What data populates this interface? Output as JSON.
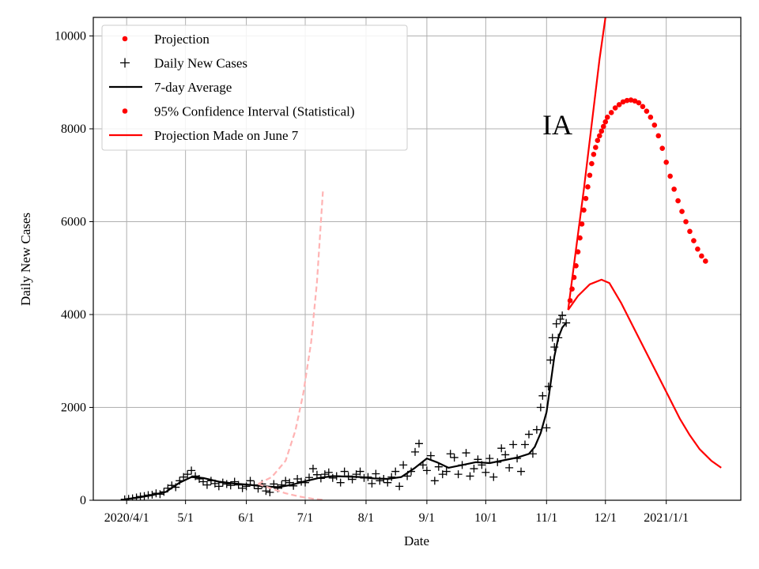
{
  "chart_data": {
    "type": "line",
    "title": "",
    "xlabel": "Date",
    "ylabel": "Daily New Cases",
    "annotation": "IA",
    "x_start": "2020-03-15",
    "x_end": "2021-02-08",
    "ylim": [
      0,
      10400
    ],
    "grid": true,
    "legend_position": "top-left",
    "x_ticks": [
      {
        "date": "2020-04-01",
        "label": "2020/4/1"
      },
      {
        "date": "2020-05-01",
        "label": "5/1"
      },
      {
        "date": "2020-06-01",
        "label": "6/1"
      },
      {
        "date": "2020-07-01",
        "label": "7/1"
      },
      {
        "date": "2020-08-01",
        "label": "8/1"
      },
      {
        "date": "2020-09-01",
        "label": "9/1"
      },
      {
        "date": "2020-10-01",
        "label": "10/1"
      },
      {
        "date": "2020-11-01",
        "label": "11/1"
      },
      {
        "date": "2020-12-01",
        "label": "12/1"
      },
      {
        "date": "2021-01-01",
        "label": "2021/1/1"
      }
    ],
    "y_ticks": [
      0,
      2000,
      4000,
      6000,
      8000,
      10000
    ],
    "legend": [
      {
        "label": "Projection",
        "marker": "dot",
        "color": "#ff0000"
      },
      {
        "label": "Daily New Cases",
        "marker": "plus",
        "color": "#000000"
      },
      {
        "label": "7-day Average",
        "marker": "line",
        "color": "#000000"
      },
      {
        "label": "95% Confidence Interval (Statistical)",
        "marker": "dot",
        "color": "#ff0000"
      },
      {
        "label": "Projection Made on June 7",
        "marker": "line",
        "color": "#ff0000"
      }
    ],
    "series": [
      {
        "name": "Daily New Cases",
        "style": "plus",
        "color": "#000000",
        "points": [
          [
            "2020-03-31",
            20
          ],
          [
            "2020-04-02",
            30
          ],
          [
            "2020-04-04",
            40
          ],
          [
            "2020-04-06",
            60
          ],
          [
            "2020-04-08",
            80
          ],
          [
            "2020-04-10",
            90
          ],
          [
            "2020-04-12",
            110
          ],
          [
            "2020-04-14",
            120
          ],
          [
            "2020-04-16",
            150
          ],
          [
            "2020-04-18",
            130
          ],
          [
            "2020-04-20",
            180
          ],
          [
            "2020-04-22",
            260
          ],
          [
            "2020-04-24",
            320
          ],
          [
            "2020-04-26",
            280
          ],
          [
            "2020-04-28",
            420
          ],
          [
            "2020-04-30",
            500
          ],
          [
            "2020-05-02",
            560
          ],
          [
            "2020-05-04",
            640
          ],
          [
            "2020-05-06",
            520
          ],
          [
            "2020-05-08",
            460
          ],
          [
            "2020-05-10",
            400
          ],
          [
            "2020-05-12",
            330
          ],
          [
            "2020-05-14",
            420
          ],
          [
            "2020-05-16",
            360
          ],
          [
            "2020-05-18",
            300
          ],
          [
            "2020-05-20",
            380
          ],
          [
            "2020-05-22",
            350
          ],
          [
            "2020-05-24",
            320
          ],
          [
            "2020-05-26",
            400
          ],
          [
            "2020-05-28",
            330
          ],
          [
            "2020-05-30",
            260
          ],
          [
            "2020-06-01",
            300
          ],
          [
            "2020-06-03",
            420
          ],
          [
            "2020-06-05",
            330
          ],
          [
            "2020-06-07",
            250
          ],
          [
            "2020-06-09",
            350
          ],
          [
            "2020-06-11",
            200
          ],
          [
            "2020-06-13",
            170
          ],
          [
            "2020-06-15",
            350
          ],
          [
            "2020-06-17",
            260
          ],
          [
            "2020-06-19",
            330
          ],
          [
            "2020-06-21",
            420
          ],
          [
            "2020-06-23",
            380
          ],
          [
            "2020-06-25",
            310
          ],
          [
            "2020-06-27",
            460
          ],
          [
            "2020-06-29",
            400
          ],
          [
            "2020-07-01",
            380
          ],
          [
            "2020-07-03",
            490
          ],
          [
            "2020-07-05",
            680
          ],
          [
            "2020-07-07",
            550
          ],
          [
            "2020-07-09",
            470
          ],
          [
            "2020-07-11",
            560
          ],
          [
            "2020-07-13",
            600
          ],
          [
            "2020-07-15",
            480
          ],
          [
            "2020-07-17",
            520
          ],
          [
            "2020-07-19",
            380
          ],
          [
            "2020-07-21",
            620
          ],
          [
            "2020-07-23",
            520
          ],
          [
            "2020-07-25",
            450
          ],
          [
            "2020-07-27",
            560
          ],
          [
            "2020-07-29",
            620
          ],
          [
            "2020-07-31",
            480
          ],
          [
            "2020-08-02",
            500
          ],
          [
            "2020-08-04",
            360
          ],
          [
            "2020-08-06",
            570
          ],
          [
            "2020-08-08",
            420
          ],
          [
            "2020-08-10",
            460
          ],
          [
            "2020-08-12",
            380
          ],
          [
            "2020-08-14",
            500
          ],
          [
            "2020-08-16",
            620
          ],
          [
            "2020-08-18",
            300
          ],
          [
            "2020-08-20",
            760
          ],
          [
            "2020-08-22",
            520
          ],
          [
            "2020-08-24",
            620
          ],
          [
            "2020-08-26",
            1040
          ],
          [
            "2020-08-28",
            1220
          ],
          [
            "2020-08-30",
            760
          ],
          [
            "2020-09-01",
            640
          ],
          [
            "2020-09-03",
            960
          ],
          [
            "2020-09-05",
            420
          ],
          [
            "2020-09-07",
            720
          ],
          [
            "2020-09-09",
            560
          ],
          [
            "2020-09-11",
            620
          ],
          [
            "2020-09-13",
            1000
          ],
          [
            "2020-09-15",
            920
          ],
          [
            "2020-09-17",
            560
          ],
          [
            "2020-09-19",
            760
          ],
          [
            "2020-09-21",
            1020
          ],
          [
            "2020-09-23",
            520
          ],
          [
            "2020-09-25",
            680
          ],
          [
            "2020-09-27",
            880
          ],
          [
            "2020-09-29",
            760
          ],
          [
            "2020-10-01",
            600
          ],
          [
            "2020-10-03",
            900
          ],
          [
            "2020-10-05",
            500
          ],
          [
            "2020-10-07",
            820
          ],
          [
            "2020-10-09",
            1120
          ],
          [
            "2020-10-11",
            980
          ],
          [
            "2020-10-13",
            700
          ],
          [
            "2020-10-15",
            1200
          ],
          [
            "2020-10-17",
            900
          ],
          [
            "2020-10-19",
            620
          ],
          [
            "2020-10-21",
            1200
          ],
          [
            "2020-10-23",
            1420
          ],
          [
            "2020-10-25",
            1000
          ],
          [
            "2020-10-27",
            1520
          ],
          [
            "2020-10-29",
            2000
          ],
          [
            "2020-10-30",
            2250
          ],
          [
            "2020-11-01",
            1560
          ],
          [
            "2020-11-02",
            2450
          ],
          [
            "2020-11-03",
            3020
          ],
          [
            "2020-11-04",
            3500
          ],
          [
            "2020-11-05",
            3300
          ],
          [
            "2020-11-06",
            3800
          ],
          [
            "2020-11-07",
            3500
          ],
          [
            "2020-11-08",
            3900
          ],
          [
            "2020-11-09",
            3980
          ],
          [
            "2020-11-11",
            3820
          ]
        ]
      },
      {
        "name": "7-day Average",
        "style": "line",
        "color": "#000000",
        "points": [
          [
            "2020-03-31",
            20
          ],
          [
            "2020-04-07",
            60
          ],
          [
            "2020-04-14",
            110
          ],
          [
            "2020-04-21",
            180
          ],
          [
            "2020-04-28",
            380
          ],
          [
            "2020-05-04",
            500
          ],
          [
            "2020-05-10",
            480
          ],
          [
            "2020-05-18",
            400
          ],
          [
            "2020-05-26",
            360
          ],
          [
            "2020-06-03",
            330
          ],
          [
            "2020-06-10",
            300
          ],
          [
            "2020-06-17",
            280
          ],
          [
            "2020-06-24",
            330
          ],
          [
            "2020-07-01",
            410
          ],
          [
            "2020-07-08",
            480
          ],
          [
            "2020-07-15",
            520
          ],
          [
            "2020-07-22",
            510
          ],
          [
            "2020-07-29",
            500
          ],
          [
            "2020-08-05",
            470
          ],
          [
            "2020-08-12",
            460
          ],
          [
            "2020-08-19",
            500
          ],
          [
            "2020-08-26",
            700
          ],
          [
            "2020-09-01",
            900
          ],
          [
            "2020-09-06",
            820
          ],
          [
            "2020-09-12",
            700
          ],
          [
            "2020-09-19",
            760
          ],
          [
            "2020-09-26",
            820
          ],
          [
            "2020-10-03",
            800
          ],
          [
            "2020-10-10",
            860
          ],
          [
            "2020-10-17",
            920
          ],
          [
            "2020-10-23",
            1000
          ],
          [
            "2020-10-26",
            1150
          ],
          [
            "2020-10-29",
            1450
          ],
          [
            "2020-11-01",
            1900
          ],
          [
            "2020-11-03",
            2500
          ],
          [
            "2020-11-05",
            3100
          ],
          [
            "2020-11-07",
            3500
          ],
          [
            "2020-11-09",
            3720
          ],
          [
            "2020-11-11",
            3820
          ]
        ]
      },
      {
        "name": "Projection",
        "style": "dot",
        "color": "#ff0000",
        "points": [
          [
            "2020-11-13",
            4300
          ],
          [
            "2020-11-14",
            4550
          ],
          [
            "2020-11-15",
            4800
          ],
          [
            "2020-11-16",
            5050
          ],
          [
            "2020-11-17",
            5350
          ],
          [
            "2020-11-18",
            5650
          ],
          [
            "2020-11-19",
            5950
          ],
          [
            "2020-11-20",
            6250
          ],
          [
            "2020-11-21",
            6500
          ],
          [
            "2020-11-22",
            6750
          ],
          [
            "2020-11-23",
            7000
          ],
          [
            "2020-11-24",
            7250
          ],
          [
            "2020-11-25",
            7450
          ],
          [
            "2020-11-26",
            7600
          ],
          [
            "2020-11-27",
            7750
          ],
          [
            "2020-11-28",
            7850
          ],
          [
            "2020-11-29",
            7950
          ],
          [
            "2020-11-30",
            8050
          ],
          [
            "2020-12-01",
            8150
          ],
          [
            "2020-12-02",
            8250
          ],
          [
            "2020-12-04",
            8350
          ],
          [
            "2020-12-06",
            8450
          ],
          [
            "2020-12-08",
            8520
          ],
          [
            "2020-12-10",
            8580
          ],
          [
            "2020-12-12",
            8610
          ],
          [
            "2020-12-14",
            8620
          ],
          [
            "2020-12-16",
            8600
          ],
          [
            "2020-12-18",
            8560
          ],
          [
            "2020-12-20",
            8480
          ],
          [
            "2020-12-22",
            8380
          ],
          [
            "2020-12-24",
            8250
          ],
          [
            "2020-12-26",
            8080
          ],
          [
            "2020-12-28",
            7850
          ],
          [
            "2020-12-30",
            7580
          ],
          [
            "2021-01-01",
            7280
          ],
          [
            "2021-01-03",
            6980
          ],
          [
            "2021-01-05",
            6700
          ],
          [
            "2021-01-07",
            6450
          ],
          [
            "2021-01-09",
            6220
          ],
          [
            "2021-01-11",
            6000
          ],
          [
            "2021-01-13",
            5790
          ],
          [
            "2021-01-15",
            5590
          ],
          [
            "2021-01-17",
            5410
          ],
          [
            "2021-01-19",
            5260
          ],
          [
            "2021-01-21",
            5150
          ]
        ]
      },
      {
        "name": "95% Confidence Interval (Statistical) upper",
        "style": "line",
        "color": "#ff0000",
        "points": [
          [
            "2020-11-12",
            4100
          ],
          [
            "2020-11-16",
            5400
          ],
          [
            "2020-11-20",
            6700
          ],
          [
            "2020-11-24",
            8100
          ],
          [
            "2020-11-28",
            9500
          ],
          [
            "2020-12-01",
            10400
          ]
        ]
      },
      {
        "name": "95% Confidence Interval (Statistical) lower",
        "style": "line",
        "color": "#ff0000",
        "points": [
          [
            "2020-11-12",
            4100
          ],
          [
            "2020-11-17",
            4400
          ],
          [
            "2020-11-23",
            4650
          ],
          [
            "2020-11-29",
            4750
          ],
          [
            "2020-12-03",
            4680
          ],
          [
            "2020-12-09",
            4250
          ],
          [
            "2020-12-15",
            3750
          ],
          [
            "2020-12-21",
            3250
          ],
          [
            "2020-12-27",
            2750
          ],
          [
            "2021-01-02",
            2250
          ],
          [
            "2021-01-08",
            1750
          ],
          [
            "2021-01-13",
            1400
          ],
          [
            "2021-01-18",
            1100
          ],
          [
            "2021-01-24",
            850
          ],
          [
            "2021-01-29",
            700
          ]
        ]
      },
      {
        "name": "Projection Made on June 7 upper",
        "style": "dashed",
        "color": "#ffb3b3",
        "points": [
          [
            "2020-06-07",
            350
          ],
          [
            "2020-06-14",
            500
          ],
          [
            "2020-06-21",
            850
          ],
          [
            "2020-06-26",
            1500
          ],
          [
            "2020-06-30",
            2300
          ],
          [
            "2020-07-04",
            3400
          ],
          [
            "2020-07-07",
            4700
          ],
          [
            "2020-07-10",
            6650
          ]
        ]
      },
      {
        "name": "Projection Made on June 7 lower",
        "style": "dashed",
        "color": "#ffb3b3",
        "points": [
          [
            "2020-06-07",
            350
          ],
          [
            "2020-06-14",
            250
          ],
          [
            "2020-06-21",
            150
          ],
          [
            "2020-06-28",
            80
          ],
          [
            "2020-07-05",
            30
          ],
          [
            "2020-07-10",
            10
          ]
        ]
      }
    ]
  }
}
